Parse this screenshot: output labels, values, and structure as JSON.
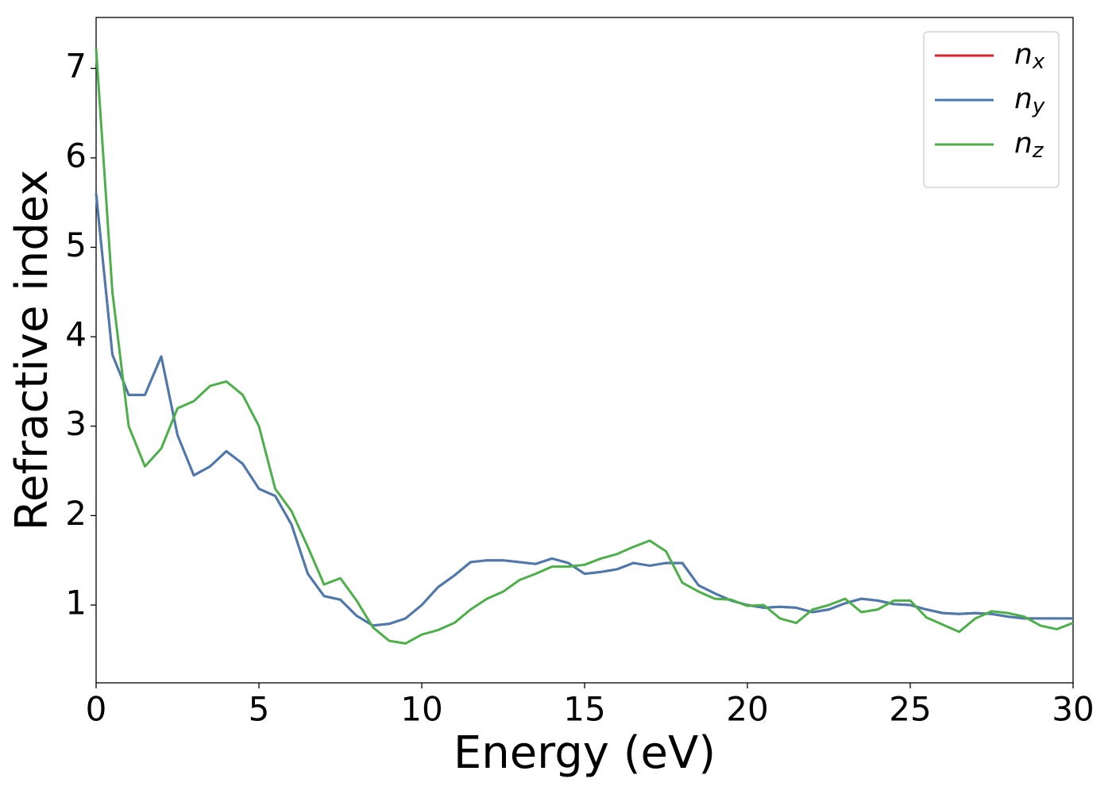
{
  "chart_data": {
    "type": "line",
    "x_label": "Energy (eV)",
    "y_label": "Refractive index",
    "x": [
      0,
      0.5,
      1,
      1.5,
      2,
      2.5,
      3,
      3.5,
      4,
      4.5,
      5,
      5.5,
      6,
      6.5,
      7,
      7.5,
      8,
      8.5,
      9,
      9.5,
      10,
      10.5,
      11,
      11.5,
      12,
      12.5,
      13,
      13.5,
      14,
      14.5,
      15,
      15.5,
      16,
      16.5,
      17,
      17.5,
      18,
      18.5,
      19,
      19.5,
      20,
      20.5,
      21,
      21.5,
      22,
      22.5,
      23,
      23.5,
      24,
      24.5,
      25,
      25.5,
      26,
      26.5,
      27,
      27.5,
      28,
      28.5,
      29,
      29.5,
      30
    ],
    "series": [
      {
        "name": "nx",
        "color": "#d62728",
        "values": [
          5.6,
          3.8,
          3.35,
          3.35,
          3.78,
          2.9,
          2.45,
          2.55,
          2.72,
          2.58,
          2.3,
          2.22,
          1.9,
          1.35,
          1.1,
          1.06,
          0.88,
          0.77,
          0.79,
          0.85,
          1.0,
          1.2,
          1.33,
          1.48,
          1.5,
          1.5,
          1.48,
          1.46,
          1.52,
          1.47,
          1.35,
          1.37,
          1.4,
          1.47,
          1.44,
          1.47,
          1.47,
          1.22,
          1.13,
          1.05,
          1.0,
          0.97,
          0.98,
          0.97,
          0.92,
          0.95,
          1.02,
          1.07,
          1.05,
          1.01,
          1.0,
          0.95,
          0.91,
          0.9,
          0.91,
          0.9,
          0.87,
          0.85,
          0.85,
          0.85,
          0.85
        ]
      },
      {
        "name": "ny",
        "color": "#4a7bb0",
        "values": [
          5.6,
          3.8,
          3.35,
          3.35,
          3.78,
          2.9,
          2.45,
          2.55,
          2.72,
          2.58,
          2.3,
          2.22,
          1.9,
          1.35,
          1.1,
          1.06,
          0.88,
          0.77,
          0.79,
          0.85,
          1.0,
          1.2,
          1.33,
          1.48,
          1.5,
          1.5,
          1.48,
          1.46,
          1.52,
          1.47,
          1.35,
          1.37,
          1.4,
          1.47,
          1.44,
          1.47,
          1.47,
          1.22,
          1.13,
          1.05,
          1.0,
          0.97,
          0.98,
          0.97,
          0.92,
          0.95,
          1.02,
          1.07,
          1.05,
          1.01,
          1.0,
          0.95,
          0.91,
          0.9,
          0.91,
          0.9,
          0.87,
          0.85,
          0.85,
          0.85,
          0.85
        ]
      },
      {
        "name": "nz",
        "color": "#4daf4a",
        "values": [
          7.22,
          4.5,
          3.0,
          2.55,
          2.75,
          3.2,
          3.28,
          3.45,
          3.5,
          3.35,
          3.0,
          2.3,
          2.05,
          1.65,
          1.23,
          1.3,
          1.05,
          0.75,
          0.6,
          0.57,
          0.67,
          0.72,
          0.8,
          0.95,
          1.07,
          1.15,
          1.28,
          1.35,
          1.43,
          1.43,
          1.45,
          1.52,
          1.57,
          1.65,
          1.72,
          1.6,
          1.25,
          1.15,
          1.07,
          1.06,
          0.99,
          1.0,
          0.85,
          0.8,
          0.95,
          1.0,
          1.07,
          0.92,
          0.95,
          1.05,
          1.05,
          0.86,
          0.78,
          0.7,
          0.85,
          0.93,
          0.91,
          0.87,
          0.77,
          0.73,
          0.8
        ]
      }
    ],
    "xlim": [
      0,
      30
    ],
    "xticks": [
      0,
      5,
      10,
      15,
      20,
      25,
      30
    ],
    "ylim": [
      0.13,
      7.57
    ],
    "yticks": [
      1,
      2,
      3,
      4,
      5,
      6,
      7
    ],
    "grid": false,
    "legend": "upper right"
  }
}
